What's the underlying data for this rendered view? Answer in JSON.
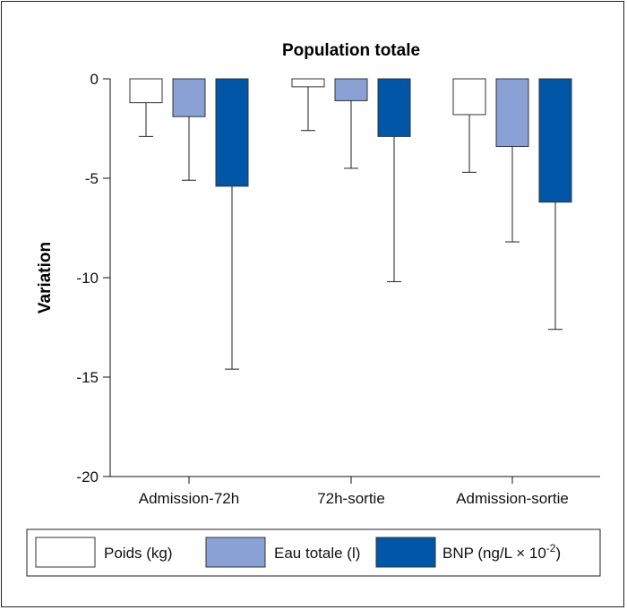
{
  "chart_data": {
    "type": "bar",
    "title": "Population totale",
    "ylabel": "Variation",
    "xlabel": "",
    "ylim": [
      -20,
      0
    ],
    "yticks": [
      "0",
      "-5",
      "-10",
      "-15",
      "-20"
    ],
    "ytick_values": [
      0,
      -5,
      -10,
      -15,
      -20
    ],
    "categories": [
      "Admission-72h",
      "72h-sortie",
      "Admission-sortie"
    ],
    "series": [
      {
        "name": "Poids (kg)",
        "color": "#ffffff",
        "values": [
          -1.2,
          -0.4,
          -1.8
        ],
        "error": [
          1.7,
          2.2,
          2.9
        ]
      },
      {
        "name": "Eau totale (l)",
        "color": "#8aa1d6",
        "values": [
          -1.9,
          -1.1,
          -3.4
        ],
        "error": [
          3.2,
          3.4,
          4.8
        ]
      },
      {
        "name": "BNP",
        "color": "#0057a8",
        "values": [
          -5.4,
          -2.9,
          -6.2
        ],
        "error": [
          9.2,
          7.3,
          6.4
        ]
      }
    ],
    "legend": {
      "placement": "bottom",
      "bnp_label": "BNP (ng/L × 10",
      "bnp_sup": "-2",
      "bnp_close": ")"
    },
    "grid": false
  }
}
